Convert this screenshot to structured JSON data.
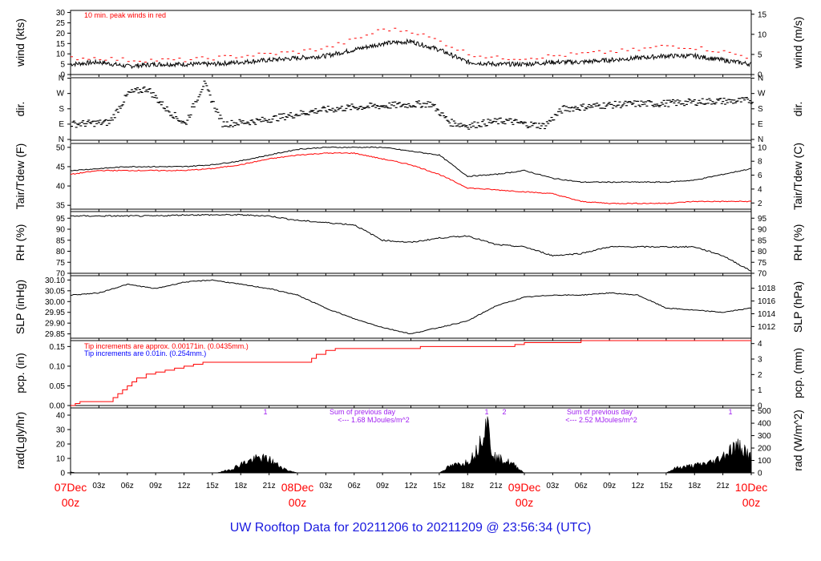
{
  "footer": "UW Rooftop Data for 20211206  to  20211209 @ 23:56:34  (UTC)",
  "chart_data": [
    {
      "type": "line",
      "id": "wind",
      "ylabel_left": "wind (kts)",
      "ylabel_right": "wind (m/s)",
      "ylim": [
        0,
        31
      ],
      "yticks_left": [
        0,
        5,
        10,
        15,
        20,
        25,
        30
      ],
      "yticks_right": [
        0,
        5,
        10,
        15
      ],
      "annotation": "10 min. peak winds in red",
      "series": [
        {
          "color": "#000000",
          "hours": [
            0,
            3,
            6,
            9,
            12,
            15,
            18,
            21,
            24,
            27,
            30,
            33,
            36,
            39,
            42,
            45,
            48,
            51,
            54,
            57,
            60,
            63,
            66,
            69,
            72
          ],
          "values": [
            5,
            6,
            4,
            5,
            5,
            5,
            6,
            7,
            8,
            9,
            12,
            15,
            16,
            12,
            6,
            5,
            5,
            6,
            6,
            7,
            8,
            9,
            9,
            7,
            5
          ]
        },
        {
          "color": "#ff0000",
          "hours": [
            0,
            3,
            6,
            9,
            12,
            15,
            18,
            21,
            24,
            27,
            30,
            33,
            36,
            39,
            42,
            45,
            48,
            51,
            54,
            57,
            60,
            63,
            66,
            69,
            72
          ],
          "values": [
            8,
            8,
            7,
            7,
            7,
            8,
            9,
            10,
            11,
            13,
            17,
            22,
            21,
            16,
            10,
            8,
            8,
            9,
            10,
            11,
            12,
            14,
            13,
            11,
            8
          ]
        }
      ]
    },
    {
      "type": "scatter",
      "id": "dir",
      "ylabel_left": "dir.",
      "ylabel_right": "dir.",
      "yticks_left": [
        "N",
        "E",
        "S",
        "W",
        "N"
      ],
      "yticks_right": [
        "N",
        "E",
        "S",
        "W",
        "N"
      ],
      "ylim": [
        0,
        360
      ],
      "hours": [
        0,
        2,
        4,
        6,
        8,
        10,
        12,
        14,
        16,
        18,
        20,
        22,
        24,
        26,
        28,
        30,
        32,
        34,
        36,
        38,
        40,
        42,
        44,
        46,
        48,
        50,
        52,
        54,
        56,
        58,
        60,
        62,
        64,
        66,
        68,
        70,
        72
      ],
      "values": [
        90,
        95,
        100,
        270,
        300,
        180,
        90,
        330,
        90,
        100,
        110,
        130,
        150,
        170,
        180,
        190,
        195,
        200,
        205,
        210,
        100,
        80,
        100,
        110,
        90,
        80,
        180,
        190,
        200,
        205,
        210,
        210,
        215,
        220,
        225,
        225,
        230
      ]
    },
    {
      "type": "line",
      "id": "temp",
      "ylabel_left": "Tair/Tdew (F)",
      "ylabel_right": "Tair/Tdew (C)",
      "ylim": [
        34,
        51
      ],
      "yticks_left": [
        35,
        40,
        45,
        50
      ],
      "yticks_right": [
        2,
        4,
        6,
        8,
        10
      ],
      "series": [
        {
          "color": "#000000",
          "hours": [
            0,
            3,
            6,
            9,
            12,
            15,
            18,
            21,
            24,
            27,
            30,
            33,
            36,
            39,
            42,
            45,
            48,
            51,
            54,
            57,
            60,
            63,
            66,
            69,
            72
          ],
          "values": [
            44,
            44.5,
            45,
            45,
            45,
            45.5,
            46.5,
            48,
            49.5,
            50,
            50,
            50,
            49,
            48,
            42.5,
            43,
            44,
            42,
            41,
            41,
            41,
            41,
            41.5,
            43,
            44.5
          ]
        },
        {
          "color": "#ff0000",
          "hours": [
            0,
            3,
            6,
            9,
            12,
            15,
            18,
            21,
            24,
            27,
            30,
            33,
            36,
            39,
            42,
            45,
            48,
            51,
            54,
            57,
            60,
            63,
            66,
            69,
            72
          ],
          "values": [
            43,
            44,
            44,
            44,
            44,
            44.5,
            45.5,
            47,
            48,
            48.5,
            48.5,
            47,
            45.5,
            43,
            39.5,
            39,
            38.5,
            38,
            36,
            35.5,
            35.5,
            35.5,
            36,
            36,
            36
          ]
        }
      ]
    },
    {
      "type": "line",
      "id": "rh",
      "ylabel_left": "RH (%)",
      "ylabel_right": "RH (%)",
      "ylim": [
        70,
        98
      ],
      "yticks_left": [
        70,
        75,
        80,
        85,
        90,
        95
      ],
      "yticks_right": [
        70,
        75,
        80,
        85,
        90,
        95
      ],
      "series": [
        {
          "color": "#000000",
          "hours": [
            0,
            3,
            6,
            9,
            12,
            15,
            18,
            21,
            24,
            27,
            30,
            33,
            36,
            39,
            42,
            45,
            48,
            51,
            54,
            57,
            60,
            63,
            66,
            69,
            72
          ],
          "values": [
            96,
            96,
            96,
            96,
            96.5,
            96.5,
            96.5,
            96,
            94,
            93,
            92,
            85,
            84,
            86,
            87,
            83,
            82,
            78,
            79,
            82,
            82,
            82,
            82,
            78,
            71
          ]
        }
      ]
    },
    {
      "type": "line",
      "id": "slp",
      "ylabel_left": "SLP (inHg)",
      "ylabel_right": "SLP (hPa)",
      "ylim": [
        29.83,
        30.12
      ],
      "yticks_left": [
        29.85,
        29.9,
        29.95,
        30.0,
        30.05,
        30.1
      ],
      "yticks_right": [
        1012,
        1014,
        1016,
        1018
      ],
      "series": [
        {
          "color": "#000000",
          "hours": [
            0,
            3,
            6,
            9,
            12,
            15,
            18,
            21,
            24,
            27,
            30,
            33,
            36,
            39,
            42,
            45,
            48,
            51,
            54,
            57,
            60,
            63,
            66,
            69,
            72
          ],
          "values": [
            30.03,
            30.04,
            30.08,
            30.06,
            30.09,
            30.1,
            30.08,
            30.06,
            30.03,
            29.97,
            29.92,
            29.88,
            29.85,
            29.88,
            29.91,
            29.98,
            30.02,
            30.03,
            30.03,
            30.04,
            30.03,
            29.97,
            29.96,
            29.95,
            29.97
          ]
        }
      ]
    },
    {
      "type": "line",
      "id": "pcp",
      "ylabel_left": "pcp. (in)",
      "ylabel_right": "pcp. (mm)",
      "ylim": [
        0,
        0.165
      ],
      "yticks_left": [
        0.0,
        0.05,
        0.1,
        0.15
      ],
      "yticks_right": [
        0,
        1,
        2,
        3,
        4
      ],
      "annotation_red": "Tip increments are approx. 0.00171in. (0.0435mm.)",
      "annotation_blue": "Tip increments are 0.01in. (0.254mm.)",
      "series": [
        {
          "color": "#ff0000",
          "hours": [
            0,
            0.5,
            1,
            4,
            4.5,
            5,
            5.5,
            6,
            6.5,
            7,
            8,
            9,
            10,
            11,
            12,
            13,
            14,
            25,
            25.5,
            26,
            27,
            28,
            36,
            37,
            46,
            47,
            48,
            53,
            54,
            72
          ],
          "values": [
            0,
            0.005,
            0.01,
            0.01,
            0.02,
            0.03,
            0.04,
            0.05,
            0.06,
            0.07,
            0.08,
            0.085,
            0.09,
            0.095,
            0.1,
            0.105,
            0.11,
            0.11,
            0.12,
            0.13,
            0.14,
            0.145,
            0.145,
            0.15,
            0.15,
            0.155,
            0.16,
            0.16,
            0.165,
            0.165
          ]
        }
      ]
    },
    {
      "type": "area",
      "id": "rad",
      "ylabel_left": "rad(Lgly/hr)",
      "ylabel_right": "rad (W/m^2)",
      "ylim": [
        0,
        45
      ],
      "yticks_left": [
        0,
        10,
        20,
        30,
        40
      ],
      "yticks_right": [
        0,
        100,
        200,
        300,
        400,
        500
      ],
      "annotations": [
        {
          "text": "Sum of previous day",
          "color": "#a020f0"
        },
        {
          "text": "<--- 1.68 MJoules/m^2",
          "color": "#a020f0"
        },
        {
          "text": "Sum of previous day",
          "color": "#a020f0"
        },
        {
          "text": "<--- 2.52 MJoules/m^2",
          "color": "#a020f0"
        },
        {
          "text": "1",
          "color": "#a020f0"
        },
        {
          "text": "1",
          "color": "#a020f0"
        },
        {
          "text": "2",
          "color": "#a020f0"
        },
        {
          "text": "1",
          "color": "#a020f0"
        }
      ],
      "series": [
        {
          "color": "#000000",
          "hours": [
            0,
            0.5,
            15.5,
            17,
            18,
            19,
            20,
            21,
            22,
            23,
            24,
            39,
            40,
            41,
            42,
            43,
            44,
            44.5,
            45,
            46,
            47,
            48,
            63,
            64,
            66,
            68,
            69,
            70,
            71,
            72
          ],
          "values": [
            1,
            0,
            0,
            3,
            7,
            10,
            12,
            11,
            6,
            2,
            0,
            0,
            5,
            7,
            9,
            18,
            45,
            20,
            12,
            10,
            6,
            0,
            0,
            4,
            6,
            9,
            14,
            20,
            22,
            12
          ]
        }
      ]
    }
  ],
  "xaxis": {
    "hour_ticks": [
      "03z",
      "06z",
      "09z",
      "12z",
      "15z",
      "18z",
      "21z",
      "03z",
      "06z",
      "09z",
      "12z",
      "15z",
      "18z",
      "21z",
      "03z",
      "06z",
      "09z",
      "12z",
      "15z",
      "18z",
      "21z"
    ],
    "day_labels": [
      {
        "top": "07Dec",
        "bottom": "00z"
      },
      {
        "top": "08Dec",
        "bottom": "00z"
      },
      {
        "top": "09Dec",
        "bottom": "00z"
      },
      {
        "top": "10Dec",
        "bottom": "00z"
      }
    ]
  }
}
